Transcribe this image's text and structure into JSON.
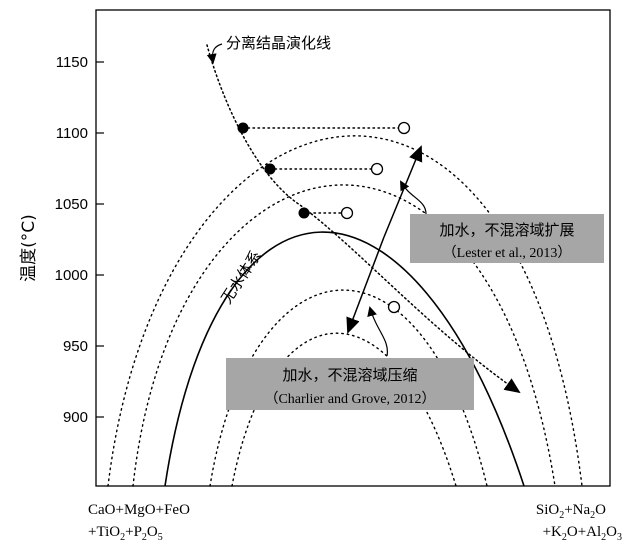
{
  "y_axis": {
    "title": "温度(°C)",
    "ticks": [
      "1150",
      "1100",
      "1050",
      "1000",
      "950",
      "900"
    ]
  },
  "labels": {
    "fractional_crystallization_line": "分离结晶演化线",
    "anhydrous_system": "无水体系"
  },
  "annotations": {
    "lester": {
      "line1": "加水，不混溶域扩展",
      "line2": "（Lester et al., 2013）"
    },
    "charlier": {
      "line1": "加水，不混溶域压缩",
      "line2": "（Charlier and Grove, 2012）"
    }
  },
  "x_axis": {
    "left_end": {
      "line1": "CaO+MgO+FeO",
      "line2": "+TiO2+P2O5"
    },
    "right_end": {
      "line1": "SiO2+Na2O",
      "line2": "+K2O+Al2O3"
    }
  },
  "colors": {
    "annotation_box": "#a6a6a6",
    "line": "#000000"
  }
}
